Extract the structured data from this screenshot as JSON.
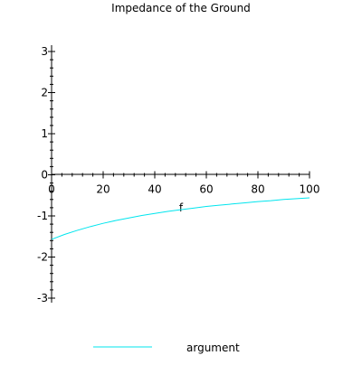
{
  "chart_data": {
    "type": "line",
    "title": "Impedance of the Ground",
    "xlabel": "f",
    "ylabel": "",
    "xlim": [
      0,
      100
    ],
    "ylim": [
      -3,
      3
    ],
    "x_ticks": [
      0,
      20,
      40,
      60,
      80,
      100
    ],
    "y_ticks": [
      -3,
      -2,
      -1,
      0,
      1,
      2,
      3
    ],
    "grid": false,
    "legend_position": "bottom",
    "series": [
      {
        "name": "argument",
        "color": "#00e5ee",
        "x": [
          0,
          5,
          10,
          15,
          20,
          25,
          30,
          35,
          40,
          45,
          50,
          55,
          60,
          65,
          70,
          75,
          80,
          85,
          90,
          95,
          100
        ],
        "y": [
          -1.57,
          -1.45,
          -1.35,
          -1.26,
          -1.18,
          -1.11,
          -1.05,
          -0.99,
          -0.94,
          -0.89,
          -0.85,
          -0.81,
          -0.77,
          -0.74,
          -0.71,
          -0.68,
          -0.65,
          -0.63,
          -0.6,
          -0.58,
          -0.56
        ]
      }
    ]
  }
}
